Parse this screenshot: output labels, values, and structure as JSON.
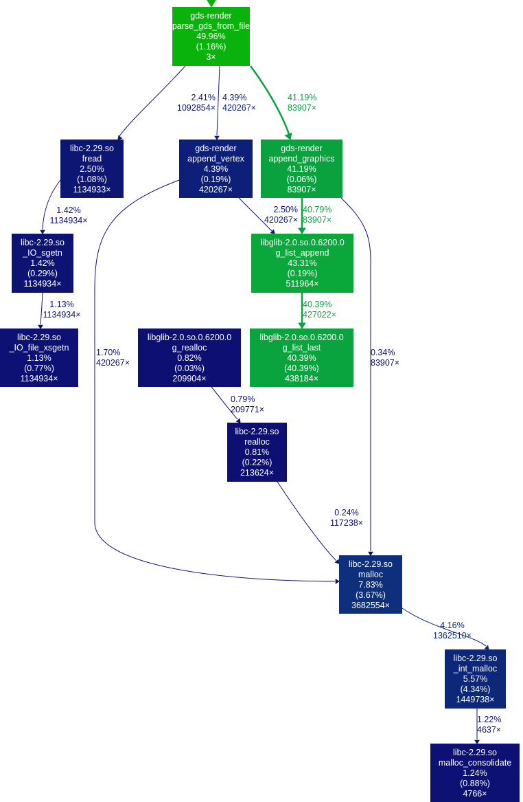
{
  "nodes": [
    {
      "id": "parse",
      "lines": [
        "gds-render",
        "parse_gds_from_file",
        "49.96%",
        "(1.16%)",
        "3×"
      ],
      "color": "#0ab30b"
    },
    {
      "id": "fread",
      "lines": [
        "libc-2.29.so",
        "fread",
        "2.50%",
        "(1.08%)",
        "1134933×"
      ],
      "color": "#0d1673"
    },
    {
      "id": "append_vertex",
      "lines": [
        "gds-render",
        "append_vertex",
        "4.39%",
        "(0.19%)",
        "420267×"
      ],
      "color": "#0d1f78"
    },
    {
      "id": "append_graphics",
      "lines": [
        "gds-render",
        "append_graphics",
        "41.19%",
        "(0.06%)",
        "83907×"
      ],
      "color": "#0aa23f"
    },
    {
      "id": "io_sgetn",
      "lines": [
        "libc-2.29.so",
        "_IO_sgetn",
        "1.42%",
        "(0.29%)",
        "1134934×"
      ],
      "color": "#0d1373"
    },
    {
      "id": "g_list_append",
      "lines": [
        "libglib-2.0.so.0.6200.0",
        "g_list_append",
        "43.31%",
        "(0.19%)",
        "511964×"
      ],
      "color": "#0aa83a"
    },
    {
      "id": "io_file_xsgetn",
      "lines": [
        "libc-2.29.so",
        "_IO_file_xsgetn",
        "1.13%",
        "(0.77%)",
        "1134934×"
      ],
      "color": "#0d1173"
    },
    {
      "id": "g_realloc",
      "lines": [
        "libglib-2.0.so.0.6200.0",
        "g_realloc",
        "0.82%",
        "(0.03%)",
        "209904×"
      ],
      "color": "#0d0f73"
    },
    {
      "id": "g_list_last",
      "lines": [
        "libglib-2.0.so.0.6200.0",
        "g_list_last",
        "40.39%",
        "(40.39%)",
        "438184×"
      ],
      "color": "#0aa43f"
    },
    {
      "id": "realloc",
      "lines": [
        "libc-2.29.so",
        "realloc",
        "0.81%",
        "(0.22%)",
        "213624×"
      ],
      "color": "#0d0f73"
    },
    {
      "id": "malloc",
      "lines": [
        "libc-2.29.so",
        "malloc",
        "7.83%",
        "(3.67%)",
        "3682554×"
      ],
      "color": "#0d2f7c"
    },
    {
      "id": "int_malloc",
      "lines": [
        "libc-2.29.so",
        "_int_malloc",
        "5.57%",
        "(4.34%)",
        "1449738×"
      ],
      "color": "#0d2879"
    },
    {
      "id": "malloc_consolidate",
      "lines": [
        "libc-2.29.so",
        "malloc_consolidate",
        "1.24%",
        "(0.88%)",
        "4766×"
      ],
      "color": "#0d1174"
    }
  ],
  "edges": [
    {
      "from": "parse",
      "to": "fread",
      "pct": "2.41%",
      "calls": "1092854×",
      "color": "#0d1673"
    },
    {
      "from": "parse",
      "to": "append_vertex",
      "pct": "4.39%",
      "calls": "420267×",
      "color": "#0d1f78"
    },
    {
      "from": "parse",
      "to": "append_graphics",
      "pct": "41.19%",
      "calls": "83907×",
      "color": "#0aa23f"
    },
    {
      "from": "fread",
      "to": "io_sgetn",
      "pct": "1.42%",
      "calls": "1134934×",
      "color": "#0d1373"
    },
    {
      "from": "io_sgetn",
      "to": "io_file_xsgetn",
      "pct": "1.13%",
      "calls": "1134934×",
      "color": "#0d1173"
    },
    {
      "from": "append_vertex",
      "to": "malloc",
      "pct": "1.70%",
      "calls": "420267×",
      "color": "#0d1174"
    },
    {
      "from": "append_vertex",
      "to": "g_list_append",
      "pct": "2.50%",
      "calls": "420267×",
      "color": "#0d1673"
    },
    {
      "from": "append_graphics",
      "to": "g_list_append",
      "pct": "40.79%",
      "calls": "83907×",
      "color": "#0aa43f"
    },
    {
      "from": "append_graphics",
      "to": "malloc",
      "pct": "0.34%",
      "calls": "83907×",
      "color": "#0d0d73"
    },
    {
      "from": "g_list_append",
      "to": "g_list_last",
      "pct": "40.39%",
      "calls": "427022×",
      "color": "#0aa43f"
    },
    {
      "from": "g_realloc",
      "to": "realloc",
      "pct": "0.79%",
      "calls": "209771×",
      "color": "#0d0f73"
    },
    {
      "from": "realloc",
      "to": "malloc",
      "pct": "0.24%",
      "calls": "117238×",
      "color": "#0d0d73"
    },
    {
      "from": "malloc",
      "to": "int_malloc",
      "pct": "4.16%",
      "calls": "1362510×",
      "color": "#0d2879"
    },
    {
      "from": "int_malloc",
      "to": "malloc_consolidate",
      "pct": "1.22%",
      "calls": "4637×",
      "color": "#0d1174"
    }
  ],
  "entry_edge_color": "#0ab30b"
}
